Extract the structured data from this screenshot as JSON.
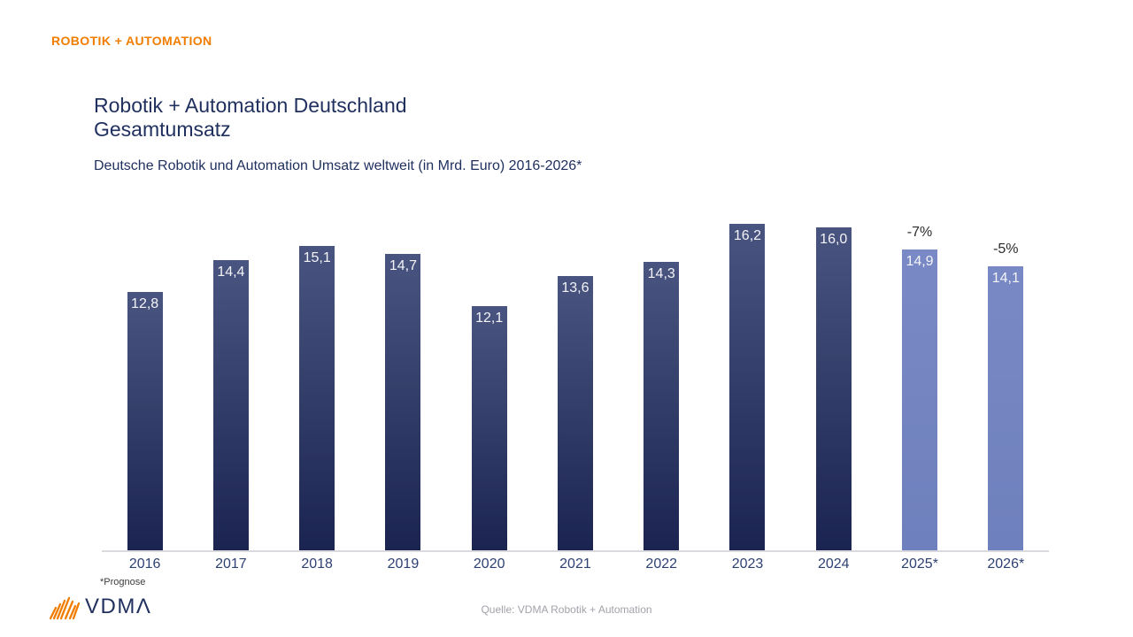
{
  "page": {
    "kicker": "ROBOTIK + AUTOMATION",
    "title_line1": "Robotik + Automation Deutschland",
    "title_line2": "Gesamtumsatz",
    "subtitle": "Deutsche Robotik und Automation Umsatz weltweit (in Mrd. Euro) 2016-2026*",
    "footnote": "*Prognose",
    "source": "Quelle: VDMA Robotik + Automation",
    "logo_text": "VDMΛ"
  },
  "colors": {
    "accent_orange": "#F07D00",
    "navy_title": "#20305F",
    "navy_axis_labels": "#2E4173",
    "bar_gradient_top": "#495580",
    "bar_gradient_bottom": "#1B2450",
    "forecast_bar_top": "#7989C5",
    "forecast_bar_bottom": "#6E80BD",
    "axis_line": "#D9D9DE",
    "value_label": "#F4F4F8",
    "annotation_text": "#2B2B2B",
    "source_text": "#A2A2AA",
    "footnote_text": "#3C3C3C"
  },
  "chart_data": {
    "type": "bar",
    "title": "Robotik + Automation Deutschland Gesamtumsatz",
    "subtitle": "Deutsche Robotik und Automation Umsatz weltweit (in Mrd. Euro) 2016-2026*",
    "unit": "Mrd. Euro",
    "xlabel": "",
    "ylabel": "",
    "ylim": [
      0,
      17.5
    ],
    "grid": false,
    "legend": false,
    "categories": [
      "2016",
      "2017",
      "2018",
      "2019",
      "2020",
      "2021",
      "2022",
      "2023",
      "2024",
      "2025*",
      "2026*"
    ],
    "values": [
      12.8,
      14.4,
      15.1,
      14.7,
      12.1,
      13.6,
      14.3,
      16.2,
      16.0,
      14.9,
      14.1
    ],
    "value_labels": [
      "12,8",
      "14,4",
      "15,1",
      "14,7",
      "12,1",
      "13,6",
      "14,3",
      "16,2",
      "16,0",
      "14,9",
      "14,1"
    ],
    "forecast_indices": [
      9,
      10
    ],
    "annotations": [
      {
        "category": "2025*",
        "text": "-7%"
      },
      {
        "category": "2026*",
        "text": "-5%"
      }
    ]
  }
}
